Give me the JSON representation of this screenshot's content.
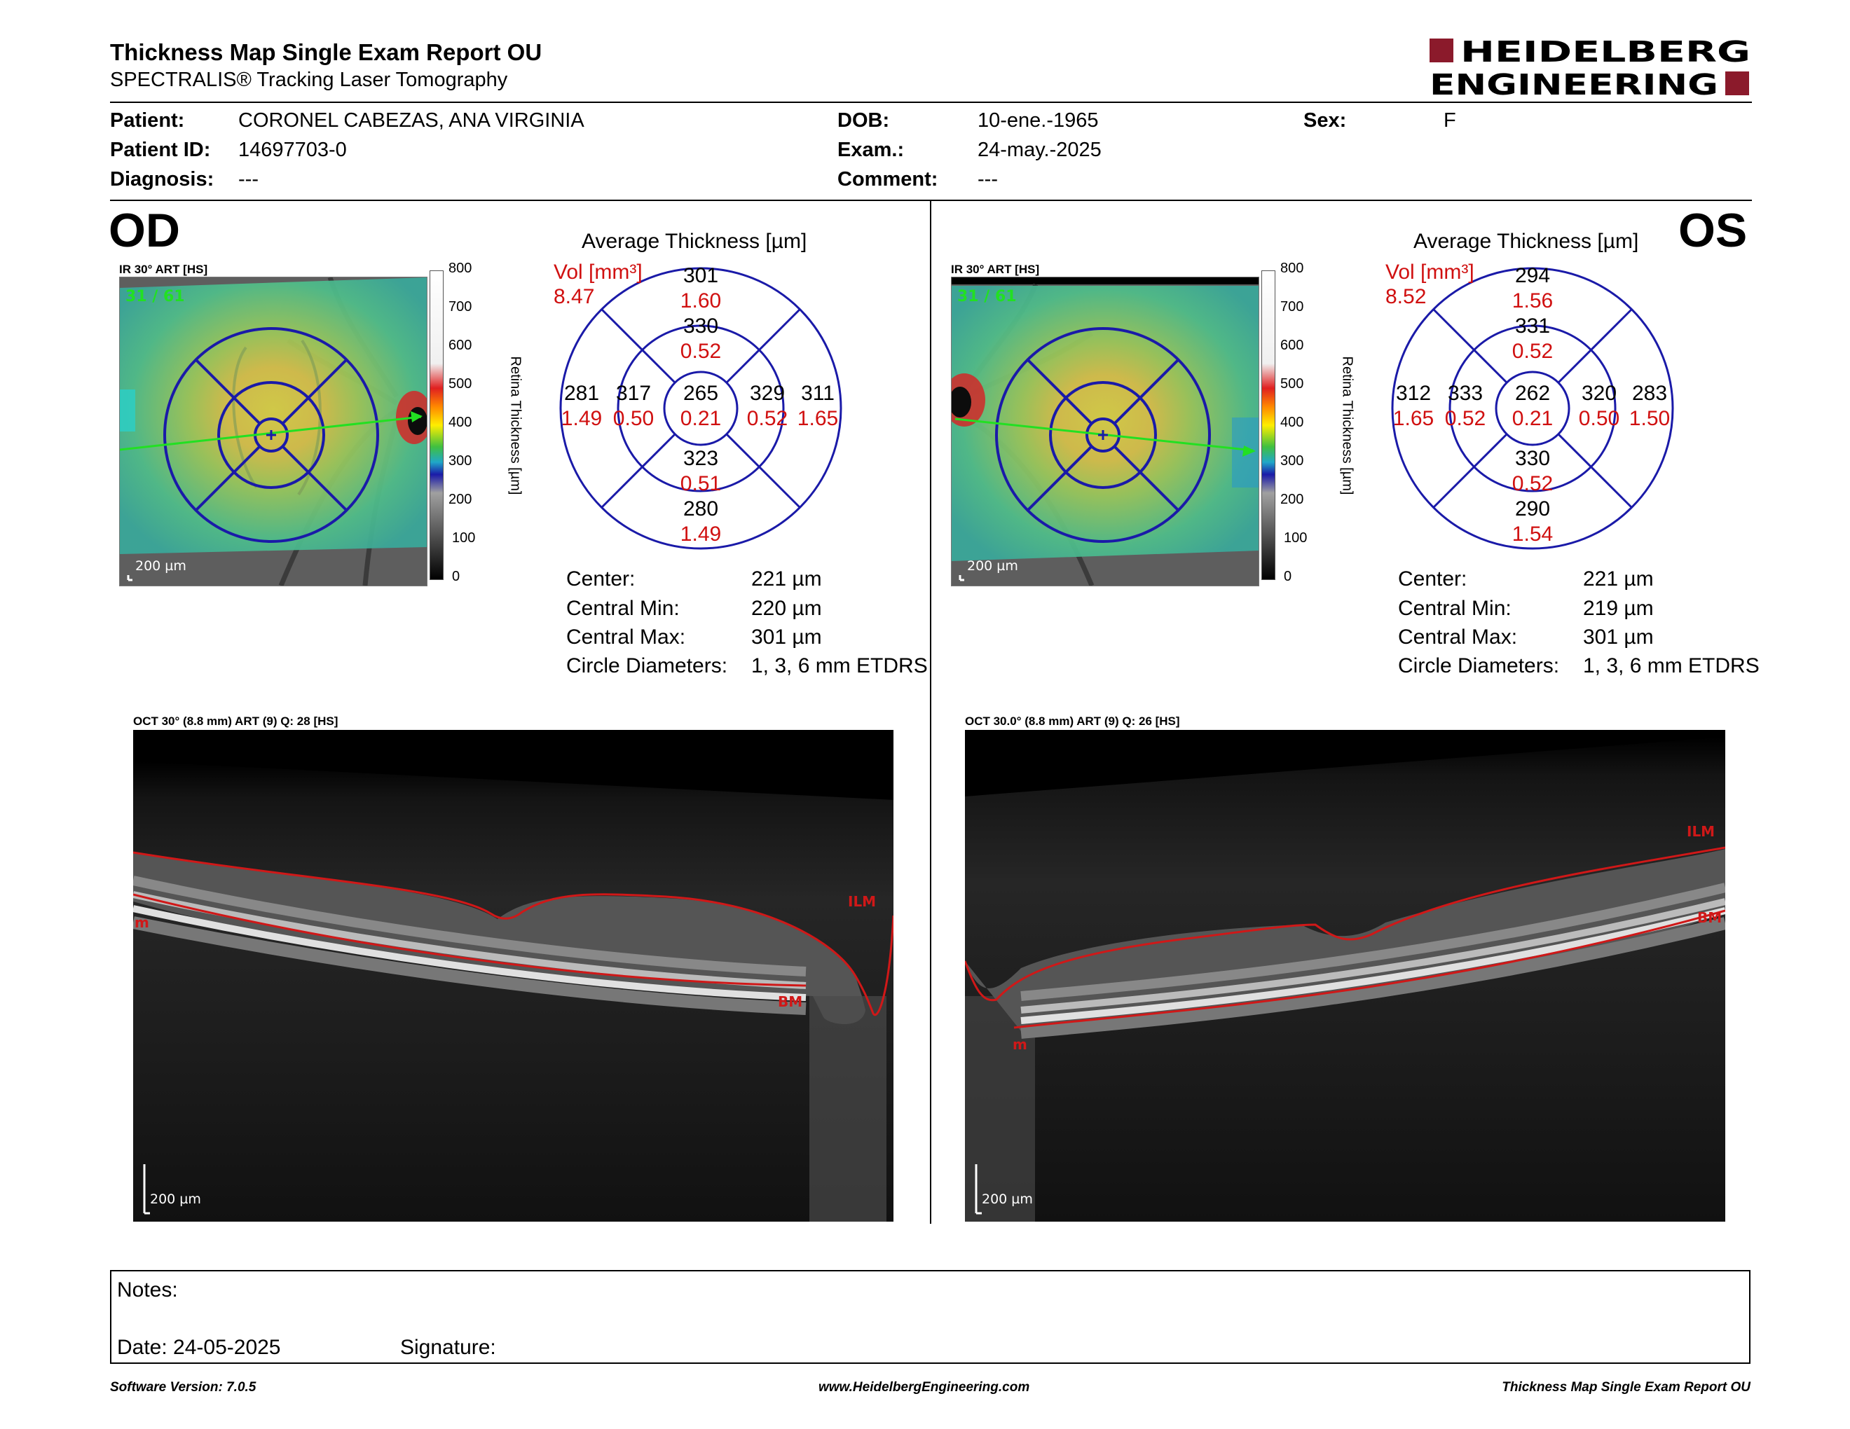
{
  "header": {
    "title": "Thickness Map Single Exam Report OU",
    "subtitle": "SPECTRALIS® Tracking Laser Tomography",
    "logo_line1": "HEIDELBERG",
    "logo_line2": "ENGINEERING",
    "brand_color": "#8b1a2b"
  },
  "patient": {
    "patient_label": "Patient:",
    "patient_value": "CORONEL CABEZAS, ANA VIRGINIA",
    "id_label": "Patient ID:",
    "id_value": "14697703-0",
    "diagnosis_label": "Diagnosis:",
    "diagnosis_value": "---",
    "dob_label": "DOB:",
    "dob_value": "10-ene.-1965",
    "exam_label": "Exam.:",
    "exam_value": "24-may.-2025",
    "comment_label": "Comment:",
    "comment_value": "---",
    "sex_label": "Sex:",
    "sex_value": "F"
  },
  "colorbar": {
    "ticks": [
      "800",
      "700",
      "600",
      "500",
      "400",
      "300",
      "200",
      "100",
      "0"
    ],
    "title": "Retina  Thickness [µm]"
  },
  "od": {
    "eye": "OD",
    "ir_caption": "IR 30° ART [HS]",
    "ir_counter": "31 / 61",
    "scale": "200 µm",
    "avg_title": "Average Thickness [µm]",
    "vol_label": "Vol [mm³]",
    "vol_value": "8.47",
    "sectors": {
      "outer_top": "301",
      "outer_top_vol": "1.60",
      "inner_top": "330",
      "inner_top_vol": "0.52",
      "outer_left": "281",
      "outer_left_vol": "1.49",
      "inner_left": "317",
      "inner_left_vol": "0.50",
      "center": "265",
      "center_vol": "0.21",
      "inner_right": "329",
      "inner_right_vol": "0.52",
      "outer_right": "311",
      "outer_right_vol": "1.65",
      "inner_bottom": "323",
      "inner_bottom_vol": "0.51",
      "outer_bottom": "280",
      "outer_bottom_vol": "1.49"
    },
    "stats": {
      "center_label": "Center:",
      "center_value": "221 µm",
      "min_label": "Central Min:",
      "min_value": "220 µm",
      "max_label": "Central Max:",
      "max_value": "301 µm",
      "diam_label": "Circle Diameters:",
      "diam_value": "1, 3, 6 mm ETDRS"
    },
    "oct_caption": "OCT 30° (8.8 mm) ART (9) Q: 28 [HS]",
    "oct_scale": "200 µm",
    "ilm": "ILM",
    "bm": "BM",
    "edge_m": "m"
  },
  "os": {
    "eye": "OS",
    "ir_caption": "IR 30° ART [HS]",
    "ir_counter": "31 / 61",
    "scale": "200 µm",
    "avg_title": "Average Thickness [µm]",
    "vol_label": "Vol [mm³]",
    "vol_value": "8.52",
    "sectors": {
      "outer_top": "294",
      "outer_top_vol": "1.56",
      "inner_top": "331",
      "inner_top_vol": "0.52",
      "outer_left": "312",
      "outer_left_vol": "1.65",
      "inner_left": "333",
      "inner_left_vol": "0.52",
      "center": "262",
      "center_vol": "0.21",
      "inner_right": "320",
      "inner_right_vol": "0.50",
      "outer_right": "283",
      "outer_right_vol": "1.50",
      "inner_bottom": "330",
      "inner_bottom_vol": "0.52",
      "outer_bottom": "290",
      "outer_bottom_vol": "1.54"
    },
    "stats": {
      "center_label": "Center:",
      "center_value": "221 µm",
      "min_label": "Central Min:",
      "min_value": "219 µm",
      "max_label": "Central Max:",
      "max_value": "301 µm",
      "diam_label": "Circle Diameters:",
      "diam_value": "1, 3, 6 mm ETDRS"
    },
    "oct_caption": "OCT 30.0° (8.8 mm) ART (9) Q: 26 [HS]",
    "oct_scale": "200 µm",
    "ilm": "ILM",
    "bm": "BM",
    "edge_m": "m"
  },
  "notes": {
    "notes_label": "Notes:",
    "date_label": "Date: 24-05-2025",
    "signature_label": "Signature:"
  },
  "footer": {
    "software": "Software Version: 7.0.5",
    "website": "www.HeidelbergEngineering.com",
    "report": "Thickness Map Single Exam Report OU"
  },
  "colors": {
    "grid_blue": "#1a1aa8",
    "volume_red": "#d01010",
    "segmentation_red": "#d01818",
    "scan_line_green": "#22e022"
  }
}
